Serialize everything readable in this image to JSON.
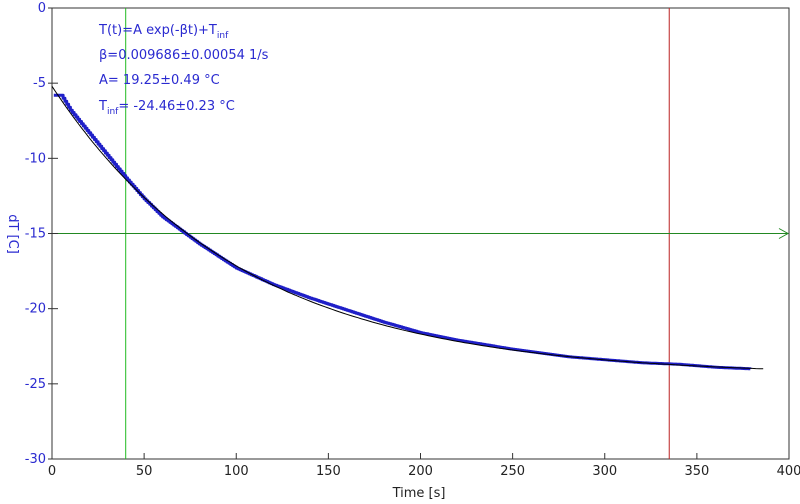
{
  "chart_data": {
    "type": "scatter",
    "xlabel": "Time [s]",
    "ylabel": "dT [C]",
    "xlim": [
      0,
      400
    ],
    "ylim": [
      -30,
      0
    ],
    "x_ticks": [
      0,
      50,
      100,
      150,
      200,
      250,
      300,
      350,
      400
    ],
    "y_ticks": [
      0,
      -5,
      -10,
      -15,
      -20,
      -25,
      -30
    ],
    "grid": false,
    "annotations": {
      "formula": {
        "prefix": "T(t)=A exp(-βt)+T",
        "sub": "inf"
      },
      "beta": "β=0.009686±0.00054 1/s",
      "amplitude": "A= 19.25±0.49 °C",
      "t_inf": {
        "prefix": "T",
        "sub": "inf",
        "suffix": "= -24.46±0.23 °C"
      }
    },
    "fit": {
      "A": 19.25,
      "beta": 0.009686,
      "T_inf": -24.46,
      "x_range": [
        0,
        386
      ]
    },
    "data_x_range": [
      1,
      379
    ],
    "series": [
      {
        "points": [
          [
            1,
            -5.8
          ],
          [
            5,
            -5.8
          ],
          [
            10,
            -6.8
          ],
          [
            20,
            -8.3
          ],
          [
            30,
            -9.8
          ],
          [
            40,
            -11.3
          ],
          [
            50,
            -12.7
          ],
          [
            60,
            -13.9
          ],
          [
            70,
            -14.8
          ],
          [
            80,
            -15.7
          ],
          [
            90,
            -16.5
          ],
          [
            100,
            -17.3
          ],
          [
            120,
            -18.4
          ],
          [
            140,
            -19.3
          ],
          [
            160,
            -20.1
          ],
          [
            180,
            -20.9
          ],
          [
            200,
            -21.6
          ],
          [
            220,
            -22.1
          ],
          [
            250,
            -22.7
          ],
          [
            280,
            -23.2
          ],
          [
            300,
            -23.4
          ],
          [
            320,
            -23.6
          ],
          [
            340,
            -23.7
          ],
          [
            360,
            -23.9
          ],
          [
            379,
            -24.0
          ]
        ]
      }
    ],
    "cursors": [
      {
        "axis": "x",
        "value": 40,
        "color": "#22bb22"
      },
      {
        "axis": "x",
        "value": 335,
        "color": "#bb2222"
      },
      {
        "axis": "y",
        "value": -15,
        "color": "#228822"
      }
    ],
    "colors": {
      "data": "#1f1fc8",
      "fit": "#000000",
      "axis_labels": "#2a2ad0",
      "frame": "#333333"
    }
  }
}
